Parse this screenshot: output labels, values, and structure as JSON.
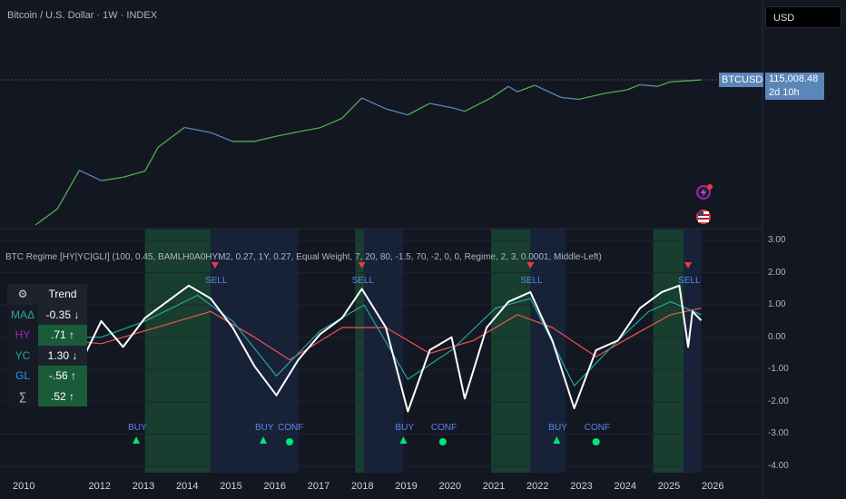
{
  "header": {
    "title": "Bitcoin / U.S. Dollar · 1W · INDEX",
    "currency": "USD"
  },
  "price_tag": {
    "symbol": "BTCUSD",
    "price": "115,008.48",
    "countdown": "2d 10h"
  },
  "indicator": {
    "label": "BTC Regime [HY|YC|GLI] (100, 0.45, BAMLH0A0HYM2, 0.27, 1Y, 0.27, Equal Weight, 7, 20, 80, -1.5, 70, -2, 0, 0, Regime, 2, 3, 0.0001, Middle-Left)"
  },
  "trend_table": {
    "header": [
      "⚙",
      "Trend"
    ],
    "rows": [
      {
        "name": "MAΔ",
        "value": "-0.35 ↓",
        "name_color": "#26a69a",
        "bg": "#1e222d"
      },
      {
        "name": "HY",
        "value": ".71 ↑",
        "name_color": "#9c27b0",
        "bg": "#1a5c3a"
      },
      {
        "name": "YC",
        "value": "1.30 ↓",
        "name_color": "#26a69a",
        "bg": "#1e222d"
      },
      {
        "name": "GL",
        "value": "-.56 ↑",
        "name_color": "#2196f3",
        "bg": "#1a5c3a"
      },
      {
        "name": "∑",
        "value": ".52 ↑",
        "name_color": "#d1d4dc",
        "bg": "#1a5c3a"
      }
    ]
  },
  "signals": {
    "sell": [
      {
        "label": "SELL",
        "year": 2014.6
      },
      {
        "label": "SELL",
        "year": 2017.95
      },
      {
        "label": "SELL",
        "year": 2021.8
      },
      {
        "label": "SELL",
        "year": 2025.4
      }
    ],
    "buy": [
      {
        "label": "BUY",
        "year": 2012.8
      },
      {
        "label": "BUY",
        "year": 2015.7
      },
      {
        "label": "BUY",
        "year": 2018.9
      },
      {
        "label": "BUY",
        "year": 2022.4
      }
    ],
    "conf": [
      {
        "label": "CONF",
        "year": 2016.3
      },
      {
        "label": "CONF",
        "year": 2019.8
      },
      {
        "label": "CONF",
        "year": 2023.3
      }
    ]
  },
  "y_axis": {
    "ticks": [
      "3.00",
      "2.00",
      "1.00",
      "0.00",
      "-1.00",
      "-2.00",
      "-3.00",
      "-4.00"
    ]
  },
  "x_axis": {
    "ticks": [
      "2010",
      "2012",
      "2013",
      "2014",
      "2015",
      "2016",
      "2017",
      "2018",
      "2019",
      "2020",
      "2021",
      "2022",
      "2023",
      "2024",
      "2025",
      "2026"
    ]
  },
  "colors": {
    "background": "#131722",
    "price_up": "#4caf50",
    "price_down": "#5b86b8",
    "regime_line": "#ffffff",
    "fast_ma": "#26a69a",
    "slow_ma": "#ef5350",
    "green_zone": "#1b5e3b",
    "blue_zone": "#1c2c4a",
    "sell": "#f23645",
    "buy": "#00e676",
    "label_text": "#5b86e8"
  },
  "chart_data": [
    {
      "type": "line",
      "title": "Bitcoin / U.S. Dollar · 1W · INDEX",
      "scale": "log",
      "x": [
        2010.5,
        2011.0,
        2011.5,
        2012.0,
        2012.5,
        2013.0,
        2013.3,
        2013.9,
        2014.5,
        2015.0,
        2015.5,
        2016.0,
        2016.5,
        2017.0,
        2017.5,
        2017.95,
        2018.5,
        2019.0,
        2019.5,
        2020.0,
        2020.3,
        2020.9,
        2021.3,
        2021.5,
        2021.9,
        2022.5,
        2022.9,
        2023.5,
        2024.0,
        2024.3,
        2024.7,
        2025.0,
        2025.5,
        2025.7
      ],
      "y": [
        0.06,
        0.3,
        14,
        5,
        7,
        13,
        140,
        1000,
        600,
        250,
        250,
        420,
        650,
        980,
        2500,
        19000,
        6400,
        3500,
        11000,
        7200,
        5000,
        19000,
        60000,
        35000,
        67000,
        20000,
        16500,
        30000,
        42000,
        71000,
        60000,
        95000,
        108000,
        115008.48
      ]
    },
    {
      "type": "line",
      "title": "BTC Regime [HY|YC|GLI]",
      "ylim": [
        -4,
        3
      ],
      "x": [
        2010.5,
        2011.0,
        2011.5,
        2012.0,
        2012.5,
        2013.0,
        2013.5,
        2014.0,
        2014.5,
        2015.0,
        2015.5,
        2016.0,
        2016.5,
        2017.0,
        2017.5,
        2017.95,
        2018.5,
        2019.0,
        2019.5,
        2020.0,
        2020.3,
        2020.8,
        2021.3,
        2021.8,
        2022.3,
        2022.8,
        2023.3,
        2023.8,
        2024.3,
        2024.8,
        2025.2,
        2025.4,
        2025.5,
        2025.7
      ],
      "y": [
        0.0,
        0.0,
        -0.9,
        0.5,
        -0.3,
        0.6,
        1.1,
        1.6,
        1.2,
        0.3,
        -0.9,
        -1.8,
        -0.7,
        0.1,
        0.6,
        1.5,
        0.3,
        -2.3,
        -0.4,
        0.0,
        -1.9,
        0.3,
        1.1,
        1.4,
        -0.1,
        -2.2,
        -0.4,
        -0.1,
        0.9,
        1.4,
        1.6,
        -0.3,
        0.8,
        0.52
      ],
      "series": [
        {
          "name": "MAΔ fast",
          "x": [
            2010.5,
            2012.0,
            2013.0,
            2014.2,
            2015.0,
            2016.0,
            2017.0,
            2018.0,
            2019.0,
            2020.0,
            2021.0,
            2021.8,
            2022.8,
            2023.8,
            2024.5,
            2025.0,
            2025.7
          ],
          "y": [
            0.0,
            0.0,
            0.5,
            1.3,
            0.5,
            -1.2,
            0.2,
            1.0,
            -1.3,
            -0.4,
            0.9,
            1.2,
            -1.5,
            -0.1,
            0.8,
            1.1,
            0.7
          ]
        },
        {
          "name": "slow",
          "x": [
            2010.5,
            2012.0,
            2013.0,
            2014.5,
            2015.5,
            2016.3,
            2017.5,
            2018.5,
            2019.5,
            2020.5,
            2021.5,
            2022.3,
            2023.3,
            2024.2,
            2025.0,
            2025.7
          ],
          "y": [
            0.0,
            -0.2,
            0.2,
            0.8,
            0.0,
            -0.7,
            0.3,
            0.3,
            -0.5,
            -0.1,
            0.7,
            0.3,
            -0.6,
            0.1,
            0.7,
            0.9
          ]
        }
      ]
    }
  ]
}
